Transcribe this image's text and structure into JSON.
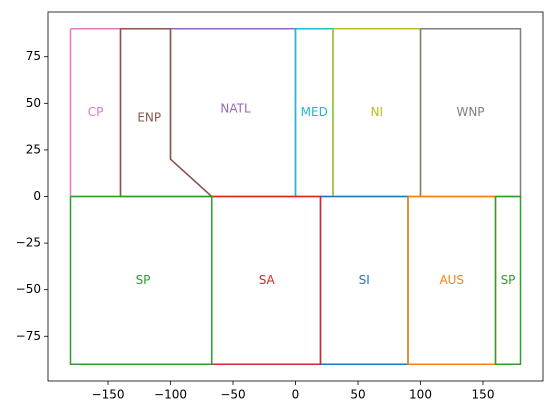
{
  "chart_data": {
    "type": "polygon",
    "xlim": [
      -198,
      198
    ],
    "ylim": [
      -99,
      99
    ],
    "xticks": [
      {
        "value": -150,
        "label": "−150"
      },
      {
        "value": -100,
        "label": "−100"
      },
      {
        "value": -50,
        "label": "−50"
      },
      0,
      50,
      100,
      150
    ],
    "yticks": [
      {
        "value": -75,
        "label": "−75"
      },
      {
        "value": -50,
        "label": "−50"
      },
      {
        "value": -25,
        "label": "−25"
      },
      0,
      25,
      50,
      75
    ],
    "series": [
      {
        "name": "NATL",
        "color": "#9467bd",
        "x": [
          -140,
          0,
          0,
          -67,
          -100,
          -100,
          -140
        ],
        "y": [
          90,
          90,
          0,
          0,
          20,
          90,
          90
        ],
        "label_x": -48,
        "label_y": 47
      },
      {
        "name": "CP",
        "color": "#e377c2",
        "x": [
          -180,
          -140,
          -140,
          -180,
          -180
        ],
        "y": [
          90,
          90,
          0,
          0,
          90
        ],
        "label_x": -160,
        "label_y": 45
      },
      {
        "name": "ENP",
        "color": "#8c564b",
        "x": [
          -140,
          -100,
          -100,
          -67,
          -140,
          -140
        ],
        "y": [
          90,
          90,
          20,
          0,
          0,
          90
        ],
        "label_x": -117,
        "label_y": 42
      },
      {
        "name": "MED",
        "color": "#17becf",
        "x": [
          0,
          30,
          30,
          0,
          0
        ],
        "y": [
          90,
          90,
          0,
          0,
          90
        ],
        "label_x": 15,
        "label_y": 45
      },
      {
        "name": "NI",
        "color": "#bcbd22",
        "x": [
          30,
          100,
          100,
          30,
          30
        ],
        "y": [
          90,
          90,
          0,
          0,
          90
        ],
        "label_x": 65,
        "label_y": 45
      },
      {
        "name": "WNP",
        "color": "#7f7f7f",
        "x": [
          100,
          180,
          180,
          100,
          100
        ],
        "y": [
          90,
          90,
          0,
          0,
          90
        ],
        "label_x": 140,
        "label_y": 45
      },
      {
        "name": "SI",
        "color": "#1f77b4",
        "x": [
          20,
          90,
          90,
          20,
          20
        ],
        "y": [
          0,
          0,
          -90,
          -90,
          0
        ],
        "label_x": 55,
        "label_y": -45
      },
      {
        "name": "SA",
        "color": "#d62728",
        "x": [
          -67,
          20,
          20,
          -67,
          -67
        ],
        "y": [
          0,
          0,
          -90,
          -90,
          0
        ],
        "label_x": -23,
        "label_y": -45
      },
      {
        "name": "AUS",
        "color": "#ff7f0e",
        "x": [
          90,
          160,
          160,
          90,
          90
        ],
        "y": [
          0,
          0,
          -90,
          -90,
          0
        ],
        "label_x": 125,
        "label_y": -45
      },
      {
        "name": "SP",
        "color": "#2ca02c",
        "x": [
          -180,
          -67,
          -67,
          -180,
          -180
        ],
        "y": [
          0,
          0,
          -90,
          -90,
          0
        ],
        "label_x": -122,
        "label_y": -45
      },
      {
        "name": "SP",
        "color": "#2ca02c",
        "x": [
          160,
          180,
          180,
          160,
          160
        ],
        "y": [
          0,
          0,
          -90,
          -90,
          0
        ],
        "label_x": 170,
        "label_y": -45
      }
    ]
  }
}
